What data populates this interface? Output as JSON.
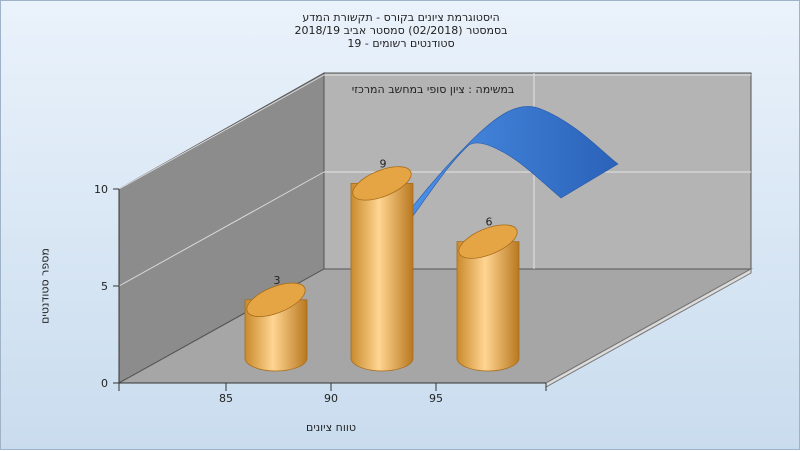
{
  "chart_data": {
    "type": "bar",
    "title_lines": [
      "היסטוגרמת ציונים בקורס - תקשורת המדע",
      "בסמסטר (02/2018) סמסטר אביב 2018/19",
      "סטודנטים רשומים - 19"
    ],
    "wall_caption": "במשימה : ציון סופי במחשב המרכזי",
    "xlabel": "טווח ציונים",
    "ylabel": "מספר סטודנטים",
    "categories": [
      "85",
      "90",
      "95"
    ],
    "values": [
      3,
      9,
      6
    ],
    "data_labels": [
      "3",
      "9",
      "6"
    ],
    "y_ticks": [
      "0",
      "5",
      "10"
    ],
    "ylim": [
      0,
      10
    ],
    "x_ticks": [
      "85",
      "90",
      "95"
    ],
    "grid": true,
    "has_curve": true,
    "colors": {
      "bar": "#e8a23c",
      "curve": "#2f6cc4",
      "back_wall": "#b4b4b4",
      "side_wall": "#8c8c8c",
      "floor": "#a6a6a6"
    }
  }
}
